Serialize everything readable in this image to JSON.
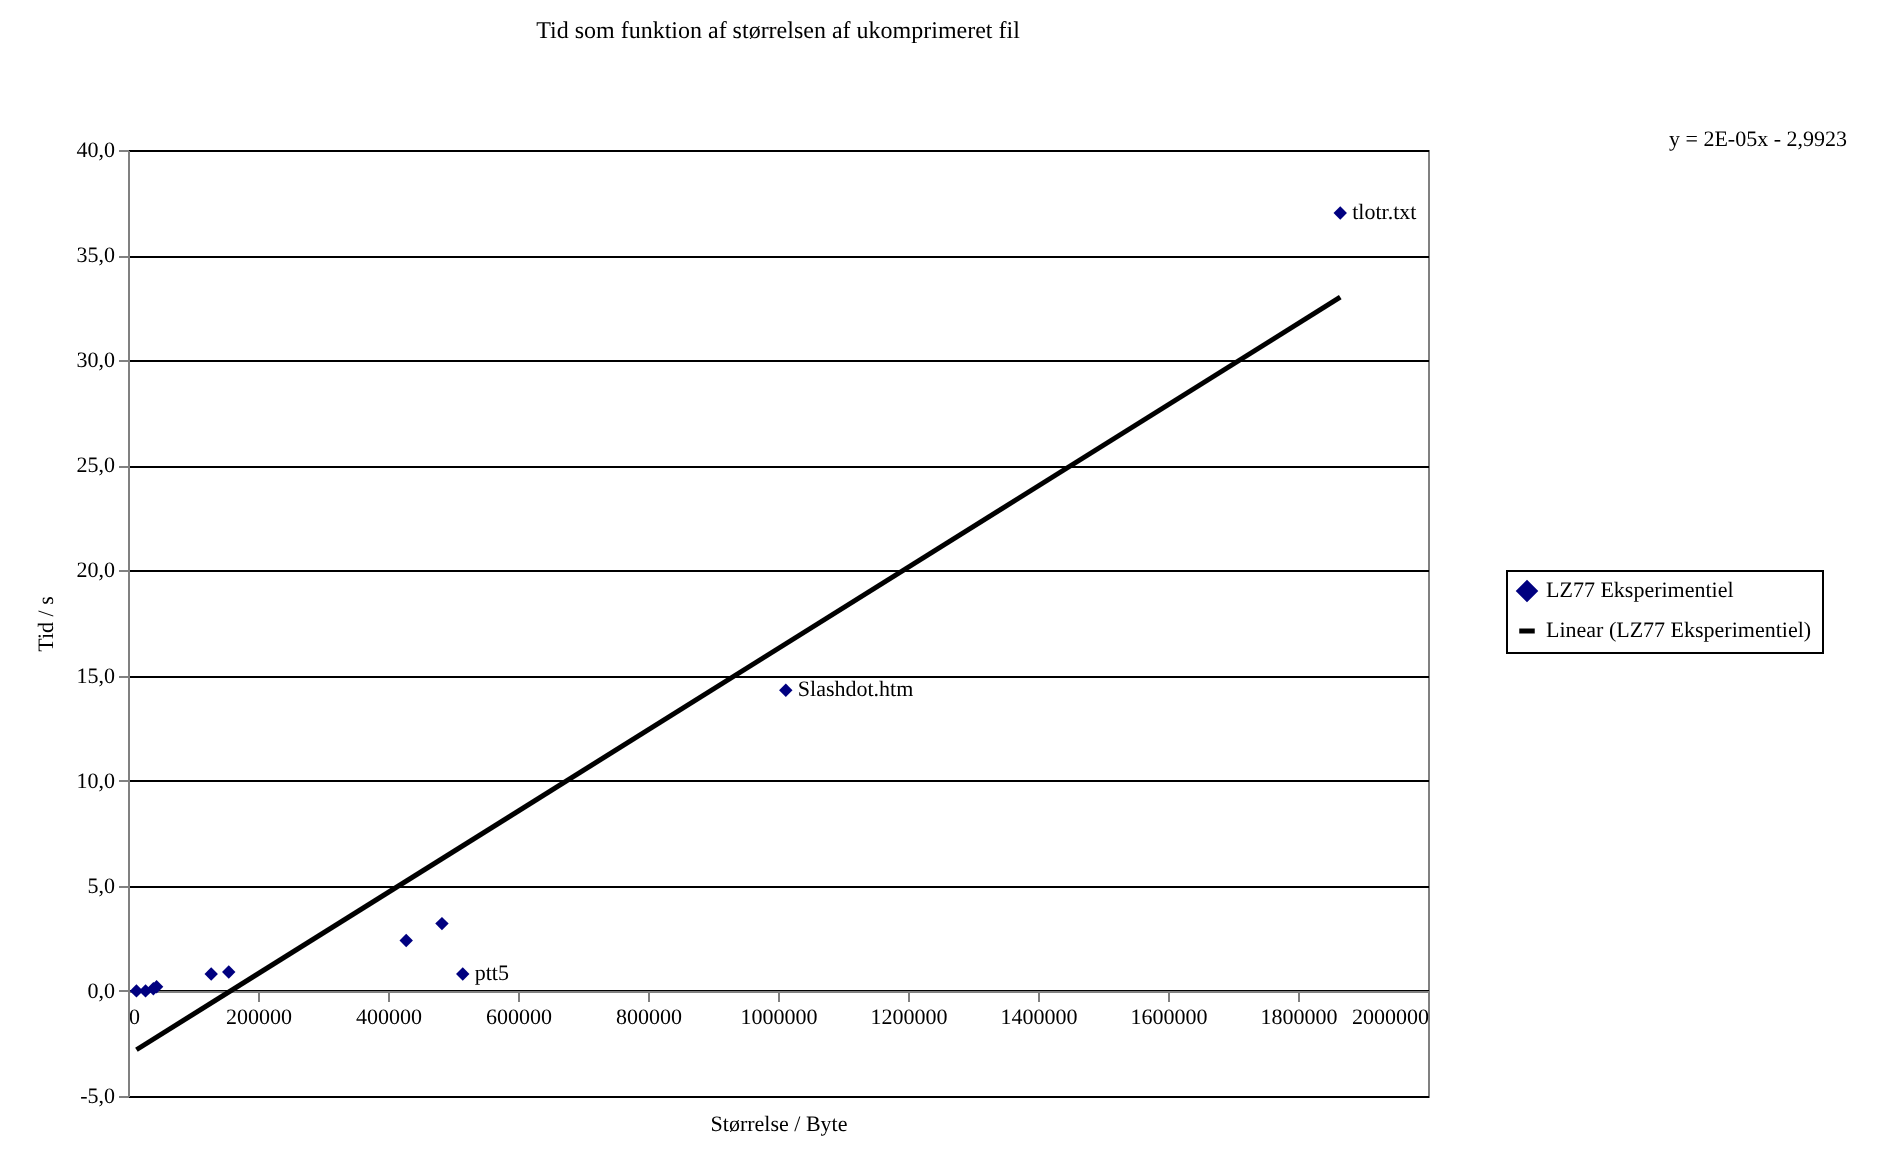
{
  "chart_data": {
    "type": "scatter",
    "title": "Tid som funktion af størrelsen af ukomprimeret fil",
    "xlabel": "Størrelse / Byte",
    "ylabel": "Tid / s",
    "x": [
      13000,
      27000,
      39000,
      44000,
      128000,
      155000,
      428000,
      483000,
      515000,
      1012000,
      1865000
    ],
    "series": [
      {
        "name": "LZ77 Eksperimentiel",
        "color": "#000080",
        "type": "scatter",
        "marker": "diamond",
        "values": [
          0.0,
          0.0,
          0.1,
          0.2,
          0.8,
          0.9,
          2.4,
          3.2,
          0.8,
          14.3,
          37.0
        ]
      },
      {
        "name": "Linear (LZ77 Eksperimentiel)",
        "color": "#000000",
        "type": "line",
        "line_style": "solid",
        "x": [
          13000,
          1865000
        ],
        "values": [
          -2.8,
          33.0
        ]
      }
    ],
    "xlim": [
      0,
      2000000
    ],
    "xticks": [
      0,
      200000,
      400000,
      600000,
      800000,
      1000000,
      1200000,
      1400000,
      1600000,
      1800000,
      2000000
    ],
    "ylim": [
      -5,
      40
    ],
    "yticks": [
      {
        "value": -5,
        "label": "-5,0"
      },
      {
        "value": 0,
        "label": "0,0"
      },
      {
        "value": 5,
        "label": "5,0"
      },
      {
        "value": 10,
        "label": "10,0"
      },
      {
        "value": 15,
        "label": "15,0"
      },
      {
        "value": 20,
        "label": "20,0"
      },
      {
        "value": 25,
        "label": "25,0"
      },
      {
        "value": 30,
        "label": "30,0"
      },
      {
        "value": 35,
        "label": "35,0"
      },
      {
        "value": 40,
        "label": "40,0"
      }
    ],
    "grid": "y",
    "legend": "right",
    "annotations": [
      "y = 2E-05x - 2,9923",
      {
        "text": "tlotr.txt",
        "x": 1865000,
        "y": 37.0
      },
      {
        "text": "Slashdot.htm",
        "x": 1012000,
        "y": 14.3
      },
      {
        "text": "ptt5",
        "x": 515000,
        "y": 0.8
      }
    ]
  }
}
